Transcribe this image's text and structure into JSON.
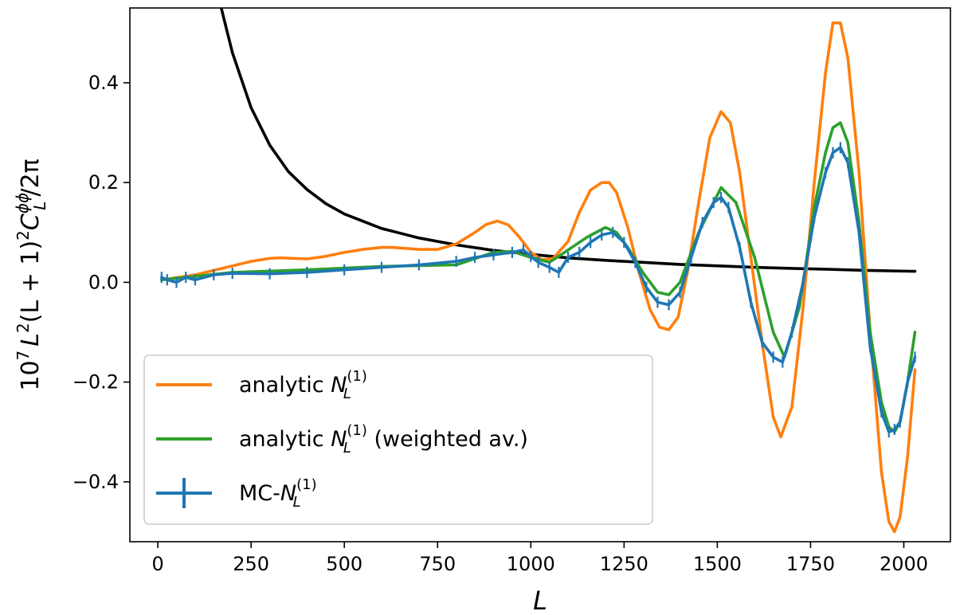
{
  "chart_data": {
    "type": "line",
    "title": "",
    "xlabel": "L",
    "ylabel": {
      "base": "10",
      "exp": "7",
      "L": "L",
      "sq": "2",
      "mid": "(L + 1)",
      "C": "C",
      "C_sup": "ϕϕ",
      "C_sub": "L",
      "tail": "/2π"
    },
    "xlim": [
      -75,
      2125
    ],
    "ylim": [
      -0.52,
      0.55
    ],
    "xticks": [
      0,
      250,
      500,
      750,
      1000,
      1250,
      1500,
      1750,
      2000
    ],
    "xtick_labels": [
      "0",
      "250",
      "500",
      "750",
      "1000",
      "1250",
      "1500",
      "1750",
      "2000"
    ],
    "yticks": [
      -0.4,
      -0.2,
      0.0,
      0.2,
      0.4
    ],
    "ytick_labels": [
      "−0.4",
      "−0.2",
      "0.0",
      "0.2",
      "0.4"
    ],
    "grid": false,
    "legend_position": "lower-left",
    "legend": [
      {
        "key": "analytic",
        "prefix": "analytic ",
        "N": "N",
        "sup": "(1)",
        "sub": "L",
        "suffix": ""
      },
      {
        "key": "weighted",
        "prefix": "analytic ",
        "N": "N",
        "sup": "(1)",
        "sub": "L",
        "suffix": " (weighted av.)"
      },
      {
        "key": "mc",
        "prefix": "MC-",
        "N": "N",
        "sup": "(1)",
        "sub": "L",
        "suffix": ""
      }
    ],
    "colors": {
      "signal": "#000000",
      "analytic": "#ff7f0e",
      "weighted": "#2ca02c",
      "mc": "#1f77b4",
      "frame": "#000000",
      "legend_border": "#cccccc"
    },
    "series": [
      {
        "name": "signal",
        "x": [
          170,
          200,
          250,
          300,
          350,
          400,
          450,
          500,
          600,
          700,
          800,
          900,
          1000,
          1100,
          1200,
          1300,
          1400,
          1500,
          1600,
          1700,
          1800,
          1900,
          2030
        ],
        "values": [
          0.55,
          0.46,
          0.35,
          0.275,
          0.222,
          0.186,
          0.158,
          0.137,
          0.108,
          0.089,
          0.075,
          0.064,
          0.056,
          0.049,
          0.044,
          0.04,
          0.036,
          0.033,
          0.03,
          0.028,
          0.026,
          0.024,
          0.022
        ]
      },
      {
        "name": "analytic",
        "x": [
          10,
          100,
          200,
          250,
          300,
          330,
          400,
          450,
          500,
          550,
          600,
          630,
          700,
          750,
          800,
          850,
          880,
          910,
          940,
          970,
          1000,
          1030,
          1060,
          1100,
          1130,
          1160,
          1190,
          1210,
          1230,
          1260,
          1290,
          1320,
          1345,
          1370,
          1395,
          1420,
          1450,
          1480,
          1510,
          1535,
          1560,
          1590,
          1620,
          1650,
          1670,
          1700,
          1730,
          1760,
          1790,
          1810,
          1830,
          1850,
          1880,
          1910,
          1940,
          1960,
          1975,
          1990,
          2010,
          2030
        ],
        "values": [
          0.005,
          0.015,
          0.033,
          0.042,
          0.048,
          0.049,
          0.047,
          0.052,
          0.06,
          0.066,
          0.07,
          0.07,
          0.066,
          0.066,
          0.077,
          0.1,
          0.116,
          0.123,
          0.115,
          0.09,
          0.06,
          0.045,
          0.048,
          0.082,
          0.14,
          0.185,
          0.2,
          0.2,
          0.18,
          0.11,
          0.02,
          -0.055,
          -0.09,
          -0.095,
          -0.07,
          0.02,
          0.16,
          0.29,
          0.342,
          0.32,
          0.22,
          0.05,
          -0.12,
          -0.27,
          -0.31,
          -0.25,
          -0.05,
          0.2,
          0.42,
          0.52,
          0.52,
          0.45,
          0.22,
          -0.1,
          -0.38,
          -0.48,
          -0.5,
          -0.47,
          -0.35,
          -0.175
        ]
      },
      {
        "name": "weighted",
        "x": [
          10,
          200,
          400,
          600,
          800,
          900,
          950,
          1000,
          1050,
          1080,
          1150,
          1200,
          1230,
          1260,
          1300,
          1340,
          1370,
          1400,
          1450,
          1510,
          1550,
          1600,
          1650,
          1680,
          1720,
          1760,
          1790,
          1810,
          1830,
          1850,
          1880,
          1910,
          1940,
          1960,
          1975,
          1990,
          2010,
          2030
        ],
        "values": [
          0.005,
          0.02,
          0.025,
          0.032,
          0.035,
          0.06,
          0.062,
          0.05,
          0.04,
          0.055,
          0.09,
          0.11,
          0.1,
          0.07,
          0.02,
          -0.02,
          -0.025,
          0.0,
          0.1,
          0.19,
          0.16,
          0.05,
          -0.1,
          -0.15,
          -0.05,
          0.15,
          0.26,
          0.31,
          0.32,
          0.28,
          0.12,
          -0.1,
          -0.24,
          -0.29,
          -0.3,
          -0.28,
          -0.2,
          -0.1
        ]
      },
      {
        "name": "mc",
        "x": [
          10,
          25,
          50,
          75,
          100,
          150,
          200,
          300,
          400,
          500,
          600,
          700,
          800,
          850,
          900,
          950,
          980,
          1000,
          1020,
          1050,
          1075,
          1100,
          1130,
          1160,
          1190,
          1220,
          1250,
          1280,
          1310,
          1340,
          1370,
          1400,
          1430,
          1460,
          1490,
          1510,
          1530,
          1560,
          1590,
          1620,
          1650,
          1675,
          1700,
          1730,
          1760,
          1790,
          1810,
          1830,
          1850,
          1880,
          1910,
          1940,
          1960,
          1975,
          1990,
          2010,
          2030
        ],
        "values": [
          0.01,
          0.005,
          0.0,
          0.01,
          0.005,
          0.015,
          0.018,
          0.017,
          0.02,
          0.025,
          0.03,
          0.035,
          0.042,
          0.05,
          0.055,
          0.06,
          0.065,
          0.052,
          0.04,
          0.03,
          0.02,
          0.05,
          0.06,
          0.08,
          0.095,
          0.1,
          0.08,
          0.04,
          -0.01,
          -0.04,
          -0.045,
          -0.02,
          0.05,
          0.12,
          0.16,
          0.17,
          0.15,
          0.07,
          -0.04,
          -0.12,
          -0.15,
          -0.16,
          -0.1,
          0.0,
          0.13,
          0.22,
          0.26,
          0.27,
          0.24,
          0.1,
          -0.13,
          -0.26,
          -0.3,
          -0.295,
          -0.28,
          -0.2,
          -0.15
        ]
      }
    ]
  }
}
